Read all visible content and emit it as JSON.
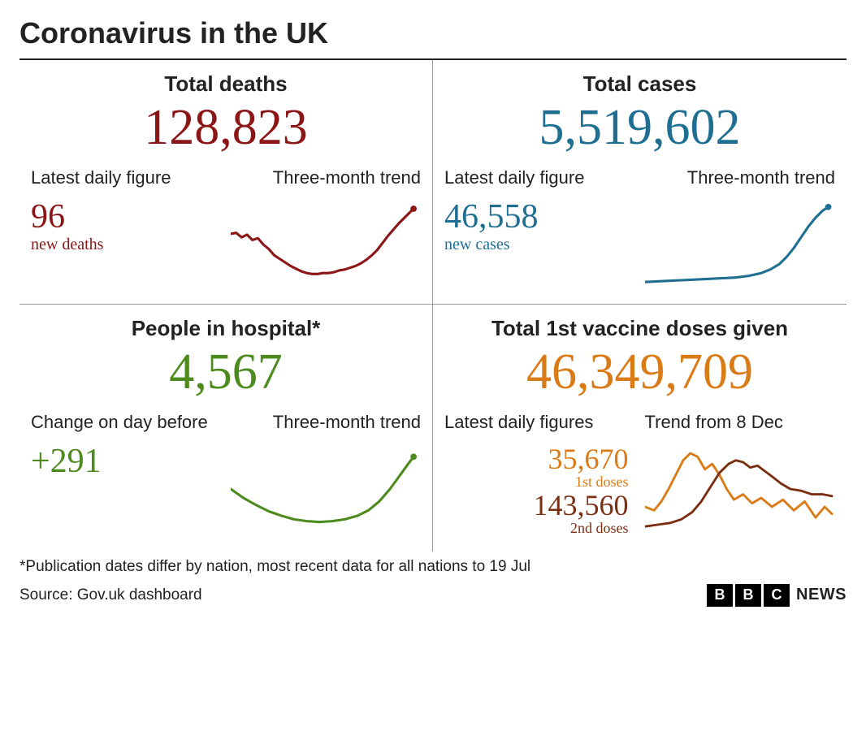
{
  "title": "Coronavirus in the UK",
  "labels": {
    "latest_daily": "Latest daily figure",
    "latest_daily_plural": "Latest daily figures",
    "three_month_trend": "Three-month trend",
    "change_day_before": "Change on day before"
  },
  "panels": {
    "deaths": {
      "title": "Total deaths",
      "total": "128,823",
      "daily_value": "96",
      "daily_caption": "new deaths",
      "color": "#8c1515",
      "trend": {
        "stroke_width": 2.8,
        "has_end_dot": true,
        "points": [
          [
            0,
            38
          ],
          [
            6,
            37
          ],
          [
            12,
            42
          ],
          [
            18,
            39
          ],
          [
            24,
            45
          ],
          [
            30,
            43
          ],
          [
            36,
            50
          ],
          [
            42,
            55
          ],
          [
            48,
            62
          ],
          [
            54,
            66
          ],
          [
            60,
            70
          ],
          [
            66,
            74
          ],
          [
            72,
            77
          ],
          [
            78,
            80
          ],
          [
            84,
            82
          ],
          [
            90,
            83
          ],
          [
            96,
            83
          ],
          [
            102,
            82
          ],
          [
            108,
            82
          ],
          [
            114,
            81
          ],
          [
            120,
            79
          ],
          [
            126,
            78
          ],
          [
            132,
            76
          ],
          [
            138,
            74
          ],
          [
            144,
            71
          ],
          [
            150,
            67
          ],
          [
            156,
            62
          ],
          [
            162,
            56
          ],
          [
            168,
            48
          ],
          [
            174,
            40
          ],
          [
            180,
            33
          ],
          [
            186,
            26
          ],
          [
            192,
            20
          ],
          [
            198,
            14
          ],
          [
            202,
            10
          ]
        ]
      }
    },
    "cases": {
      "title": "Total cases",
      "total": "5,519,602",
      "daily_value": "46,558",
      "daily_caption": "new cases",
      "color": "#1f6f93",
      "trend": {
        "stroke_width": 2.8,
        "has_end_dot": true,
        "points": [
          [
            0,
            92
          ],
          [
            20,
            91
          ],
          [
            40,
            90
          ],
          [
            60,
            89
          ],
          [
            80,
            88
          ],
          [
            100,
            87
          ],
          [
            115,
            85
          ],
          [
            128,
            82
          ],
          [
            138,
            78
          ],
          [
            148,
            72
          ],
          [
            156,
            64
          ],
          [
            164,
            54
          ],
          [
            172,
            42
          ],
          [
            180,
            30
          ],
          [
            188,
            20
          ],
          [
            196,
            12
          ],
          [
            202,
            8
          ]
        ]
      }
    },
    "hospital": {
      "title": "People in hospital*",
      "total": "4,567",
      "change_value": "+291",
      "color": "#4d8b1f",
      "trend": {
        "stroke_width": 2.8,
        "has_end_dot": true,
        "points": [
          [
            0,
            50
          ],
          [
            14,
            60
          ],
          [
            28,
            68
          ],
          [
            42,
            75
          ],
          [
            56,
            80
          ],
          [
            70,
            84
          ],
          [
            84,
            86
          ],
          [
            98,
            87
          ],
          [
            112,
            86
          ],
          [
            126,
            84
          ],
          [
            140,
            80
          ],
          [
            152,
            74
          ],
          [
            164,
            64
          ],
          [
            176,
            50
          ],
          [
            186,
            36
          ],
          [
            196,
            22
          ],
          [
            202,
            14
          ]
        ]
      }
    },
    "vaccine": {
      "title": "Total 1st vaccine doses given",
      "total": "46,349,709",
      "color": "#d97b17",
      "first_doses": {
        "value": "35,670",
        "caption": "1st doses",
        "color": "#d97b17"
      },
      "second_doses": {
        "value": "143,560",
        "caption": "2nd doses",
        "color": "#7a2e12"
      },
      "trend_label": "Trend from 8 Dec",
      "trend_first": {
        "stroke_width": 2.6,
        "points": [
          [
            0,
            70
          ],
          [
            10,
            74
          ],
          [
            18,
            64
          ],
          [
            26,
            50
          ],
          [
            34,
            34
          ],
          [
            42,
            18
          ],
          [
            50,
            10
          ],
          [
            58,
            14
          ],
          [
            66,
            28
          ],
          [
            74,
            22
          ],
          [
            82,
            34
          ],
          [
            90,
            50
          ],
          [
            98,
            62
          ],
          [
            108,
            56
          ],
          [
            118,
            66
          ],
          [
            128,
            60
          ],
          [
            140,
            70
          ],
          [
            152,
            62
          ],
          [
            164,
            74
          ],
          [
            176,
            64
          ],
          [
            188,
            82
          ],
          [
            198,
            70
          ],
          [
            206,
            78
          ]
        ]
      },
      "trend_second": {
        "stroke_width": 2.6,
        "points": [
          [
            0,
            92
          ],
          [
            14,
            90
          ],
          [
            28,
            88
          ],
          [
            40,
            84
          ],
          [
            52,
            76
          ],
          [
            62,
            64
          ],
          [
            72,
            48
          ],
          [
            82,
            32
          ],
          [
            92,
            22
          ],
          [
            100,
            18
          ],
          [
            108,
            20
          ],
          [
            116,
            26
          ],
          [
            124,
            24
          ],
          [
            132,
            30
          ],
          [
            140,
            36
          ],
          [
            150,
            44
          ],
          [
            160,
            50
          ],
          [
            172,
            52
          ],
          [
            184,
            56
          ],
          [
            196,
            56
          ],
          [
            206,
            58
          ]
        ]
      }
    }
  },
  "footnote": "*Publication dates differ by nation, most recent data for all nations to 19 Jul",
  "source": "Source: Gov.uk dashboard",
  "attribution": {
    "blocks": [
      "B",
      "B",
      "C"
    ],
    "text": "NEWS"
  },
  "style": {
    "title_fontsize": 36,
    "metric_title_fontsize": 26,
    "big_number_fontsize": 62,
    "sub_label_fontsize": 22,
    "daily_num_fontsize": 42,
    "background": "#ffffff",
    "rule_color": "#222222",
    "divider_color": "#999999",
    "spark_viewbox": "0 0 210 100"
  }
}
